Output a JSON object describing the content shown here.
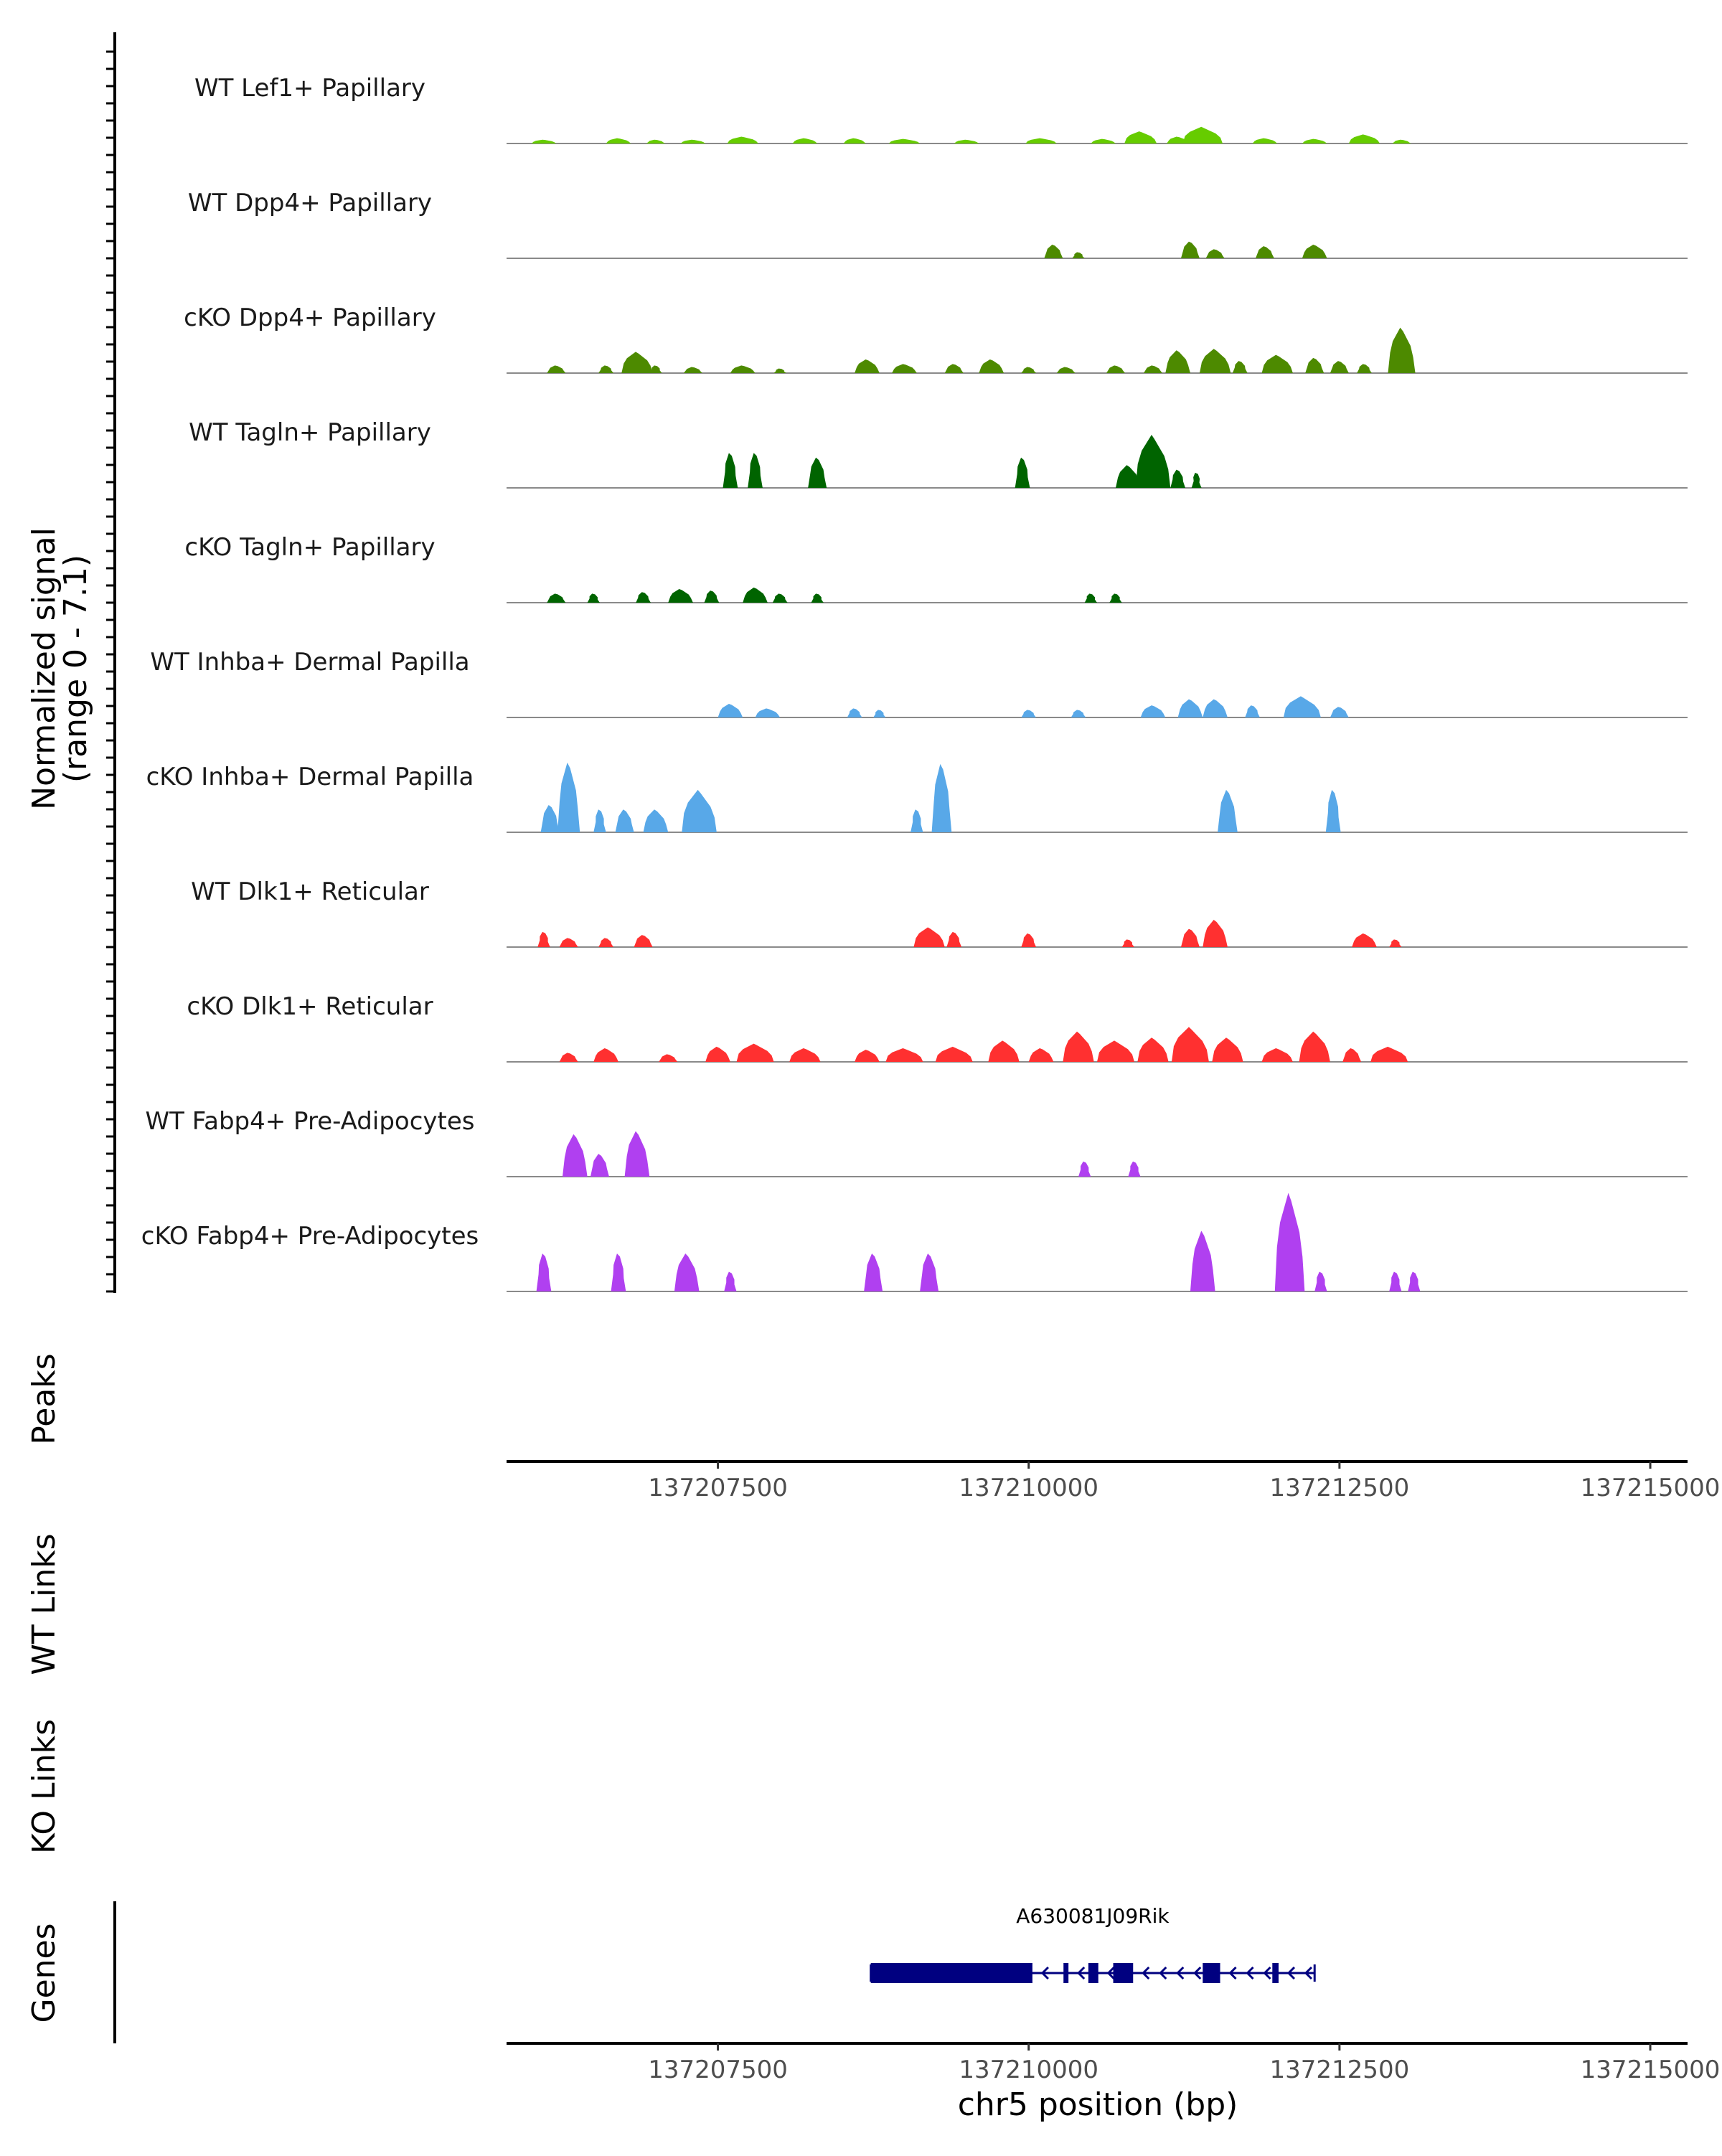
{
  "chart_data": {
    "type": "area",
    "title": "",
    "y_axis_label_line1": "Normalized signal",
    "y_axis_label_line2": "(range 0 - 7.1)",
    "y_range": [
      0,
      7.1
    ],
    "x_range": [
      137205800,
      137215300
    ],
    "xlabel": "chr5 position (bp)",
    "x_ticks": [
      137207500,
      137210000,
      137212500,
      137215000
    ],
    "x_tick_labels": [
      "137207500",
      "137210000",
      "137212500",
      "137215000"
    ],
    "tracks": [
      {
        "name": "WT Lef1+ Papillary",
        "color": "#66cc00",
        "peaks": [
          [
            137206100,
            0.25,
            200
          ],
          [
            137206700,
            0.35,
            200
          ],
          [
            137207000,
            0.25,
            150
          ],
          [
            137207300,
            0.25,
            200
          ],
          [
            137207700,
            0.45,
            250
          ],
          [
            137208200,
            0.35,
            200
          ],
          [
            137208600,
            0.35,
            180
          ],
          [
            137209000,
            0.3,
            250
          ],
          [
            137209500,
            0.25,
            200
          ],
          [
            137210100,
            0.35,
            250
          ],
          [
            137210600,
            0.3,
            200
          ],
          [
            137210900,
            0.8,
            260
          ],
          [
            137211200,
            0.45,
            180
          ],
          [
            137211400,
            1.1,
            320
          ],
          [
            137211900,
            0.35,
            200
          ],
          [
            137212300,
            0.3,
            200
          ],
          [
            137212700,
            0.6,
            250
          ],
          [
            137213000,
            0.25,
            150
          ]
        ]
      },
      {
        "name": "WT Dpp4+ Papillary",
        "color": "#4d8a00",
        "peaks": [
          [
            137210200,
            0.9,
            150
          ],
          [
            137210400,
            0.4,
            100
          ],
          [
            137211300,
            1.1,
            150
          ],
          [
            137211500,
            0.6,
            150
          ],
          [
            137211900,
            0.8,
            150
          ],
          [
            137212300,
            0.9,
            200
          ]
        ]
      },
      {
        "name": "cKO Dpp4+ Papillary",
        "color": "#4d8a00",
        "peaks": [
          [
            137206200,
            0.5,
            150
          ],
          [
            137206600,
            0.5,
            120
          ],
          [
            137206850,
            1.4,
            250
          ],
          [
            137207000,
            0.5,
            100
          ],
          [
            137207300,
            0.4,
            150
          ],
          [
            137207700,
            0.5,
            200
          ],
          [
            137208000,
            0.3,
            100
          ],
          [
            137208700,
            0.9,
            200
          ],
          [
            137209000,
            0.6,
            200
          ],
          [
            137209400,
            0.6,
            150
          ],
          [
            137209700,
            0.9,
            200
          ],
          [
            137210000,
            0.4,
            120
          ],
          [
            137210300,
            0.4,
            150
          ],
          [
            137210700,
            0.5,
            150
          ],
          [
            137211000,
            0.5,
            150
          ],
          [
            137211200,
            1.5,
            200
          ],
          [
            137211500,
            1.6,
            250
          ],
          [
            137211700,
            0.8,
            120
          ],
          [
            137212000,
            1.2,
            250
          ],
          [
            137212300,
            1.0,
            150
          ],
          [
            137212500,
            0.8,
            150
          ],
          [
            137212700,
            0.6,
            120
          ],
          [
            137213000,
            3.0,
            220
          ]
        ]
      },
      {
        "name": "WT Tagln+ Papillary",
        "color": "#006400",
        "peaks": [
          [
            137207600,
            2.3,
            120
          ],
          [
            137207800,
            2.3,
            120
          ],
          [
            137208300,
            2.0,
            150
          ],
          [
            137209950,
            2.0,
            120
          ],
          [
            137210800,
            1.5,
            200
          ],
          [
            137211000,
            3.5,
            280
          ],
          [
            137211200,
            1.2,
            120
          ],
          [
            137211350,
            1.0,
            80
          ]
        ]
      },
      {
        "name": "cKO Tagln+ Papillary",
        "color": "#006400",
        "peaks": [
          [
            137206200,
            0.6,
            150
          ],
          [
            137206500,
            0.6,
            100
          ],
          [
            137206900,
            0.7,
            120
          ],
          [
            137207200,
            0.9,
            200
          ],
          [
            137207450,
            0.8,
            120
          ],
          [
            137207800,
            1.0,
            200
          ],
          [
            137208000,
            0.6,
            120
          ],
          [
            137208300,
            0.6,
            100
          ],
          [
            137210500,
            0.6,
            100
          ],
          [
            137210700,
            0.6,
            100
          ]
        ]
      },
      {
        "name": "WT Inhba+ Dermal Papilla",
        "color": "#58a8e8",
        "peaks": [
          [
            137207600,
            0.9,
            200
          ],
          [
            137207900,
            0.6,
            200
          ],
          [
            137208600,
            0.6,
            120
          ],
          [
            137208800,
            0.5,
            100
          ],
          [
            137210000,
            0.5,
            120
          ],
          [
            137210400,
            0.5,
            120
          ],
          [
            137211000,
            0.8,
            200
          ],
          [
            137211300,
            1.2,
            200
          ],
          [
            137211500,
            1.2,
            200
          ],
          [
            137211800,
            0.8,
            120
          ],
          [
            137212200,
            1.4,
            300
          ],
          [
            137212500,
            0.7,
            150
          ]
        ]
      },
      {
        "name": "cKO Inhba+ Dermal Papilla",
        "color": "#58a8e8",
        "peaks": [
          [
            137206150,
            1.8,
            150
          ],
          [
            137206300,
            4.6,
            180
          ],
          [
            137206550,
            1.5,
            100
          ],
          [
            137206750,
            1.5,
            150
          ],
          [
            137207000,
            1.5,
            200
          ],
          [
            137207350,
            2.8,
            280
          ],
          [
            137209100,
            1.5,
            100
          ],
          [
            137209300,
            4.5,
            160
          ],
          [
            137211600,
            2.8,
            160
          ],
          [
            137212450,
            2.8,
            120
          ]
        ]
      },
      {
        "name": "WT Dlk1+ Reticular",
        "color": "#ff3030",
        "peaks": [
          [
            137206100,
            1.0,
            100
          ],
          [
            137206300,
            0.6,
            150
          ],
          [
            137206600,
            0.6,
            120
          ],
          [
            137206900,
            0.8,
            150
          ],
          [
            137209200,
            1.3,
            250
          ],
          [
            137209400,
            1.0,
            120
          ],
          [
            137210000,
            0.9,
            120
          ],
          [
            137210800,
            0.5,
            100
          ],
          [
            137211300,
            1.2,
            150
          ],
          [
            137211500,
            1.8,
            200
          ],
          [
            137212700,
            0.9,
            200
          ],
          [
            137212950,
            0.5,
            100
          ]
        ]
      },
      {
        "name": "cKO Dlk1+ Reticular",
        "color": "#ff3030",
        "peaks": [
          [
            137206300,
            0.6,
            150
          ],
          [
            137206600,
            0.9,
            200
          ],
          [
            137207100,
            0.5,
            150
          ],
          [
            137207500,
            1.0,
            200
          ],
          [
            137207800,
            1.2,
            300
          ],
          [
            137208200,
            0.9,
            250
          ],
          [
            137208700,
            0.8,
            200
          ],
          [
            137209000,
            0.9,
            300
          ],
          [
            137209400,
            1.0,
            300
          ],
          [
            137209800,
            1.4,
            250
          ],
          [
            137210100,
            0.9,
            200
          ],
          [
            137210400,
            2.0,
            250
          ],
          [
            137210700,
            1.4,
            300
          ],
          [
            137211000,
            1.6,
            250
          ],
          [
            137211300,
            2.3,
            300
          ],
          [
            137211600,
            1.6,
            250
          ],
          [
            137212000,
            0.9,
            250
          ],
          [
            137212300,
            2.0,
            250
          ],
          [
            137212600,
            0.9,
            150
          ],
          [
            137212900,
            1.0,
            300
          ]
        ]
      },
      {
        "name": "WT Fabp4+ Pre-Adipocytes",
        "color": "#b040f0",
        "peaks": [
          [
            137206350,
            2.8,
            200
          ],
          [
            137206550,
            1.5,
            150
          ],
          [
            137206850,
            3.0,
            200
          ],
          [
            137210450,
            1.0,
            100
          ],
          [
            137210850,
            1.0,
            100
          ]
        ]
      },
      {
        "name": "cKO Fabp4+ Pre-Adipocytes",
        "color": "#b040f0",
        "peaks": [
          [
            137206100,
            2.5,
            120
          ],
          [
            137206700,
            2.5,
            120
          ],
          [
            137207250,
            2.5,
            200
          ],
          [
            137207600,
            1.3,
            100
          ],
          [
            137208750,
            2.5,
            150
          ],
          [
            137209200,
            2.5,
            150
          ],
          [
            137211400,
            4.0,
            200
          ],
          [
            137212100,
            6.5,
            240
          ],
          [
            137212350,
            1.3,
            100
          ],
          [
            137212950,
            1.3,
            100
          ],
          [
            137213100,
            1.3,
            100
          ]
        ]
      }
    ],
    "other_tracks": [
      "Peaks",
      "WT Links",
      "KO Links",
      "Genes"
    ],
    "gene": {
      "name": "A630081J09Rik",
      "strand": "-",
      "start": 137208730,
      "end": 137212300,
      "exons": [
        [
          137208730,
          137210030
        ],
        [
          137210280,
          137210320
        ],
        [
          137210480,
          137210560
        ],
        [
          137210680,
          137210840
        ],
        [
          137211400,
          137211540
        ],
        [
          137211960,
          137212010
        ]
      ]
    }
  }
}
